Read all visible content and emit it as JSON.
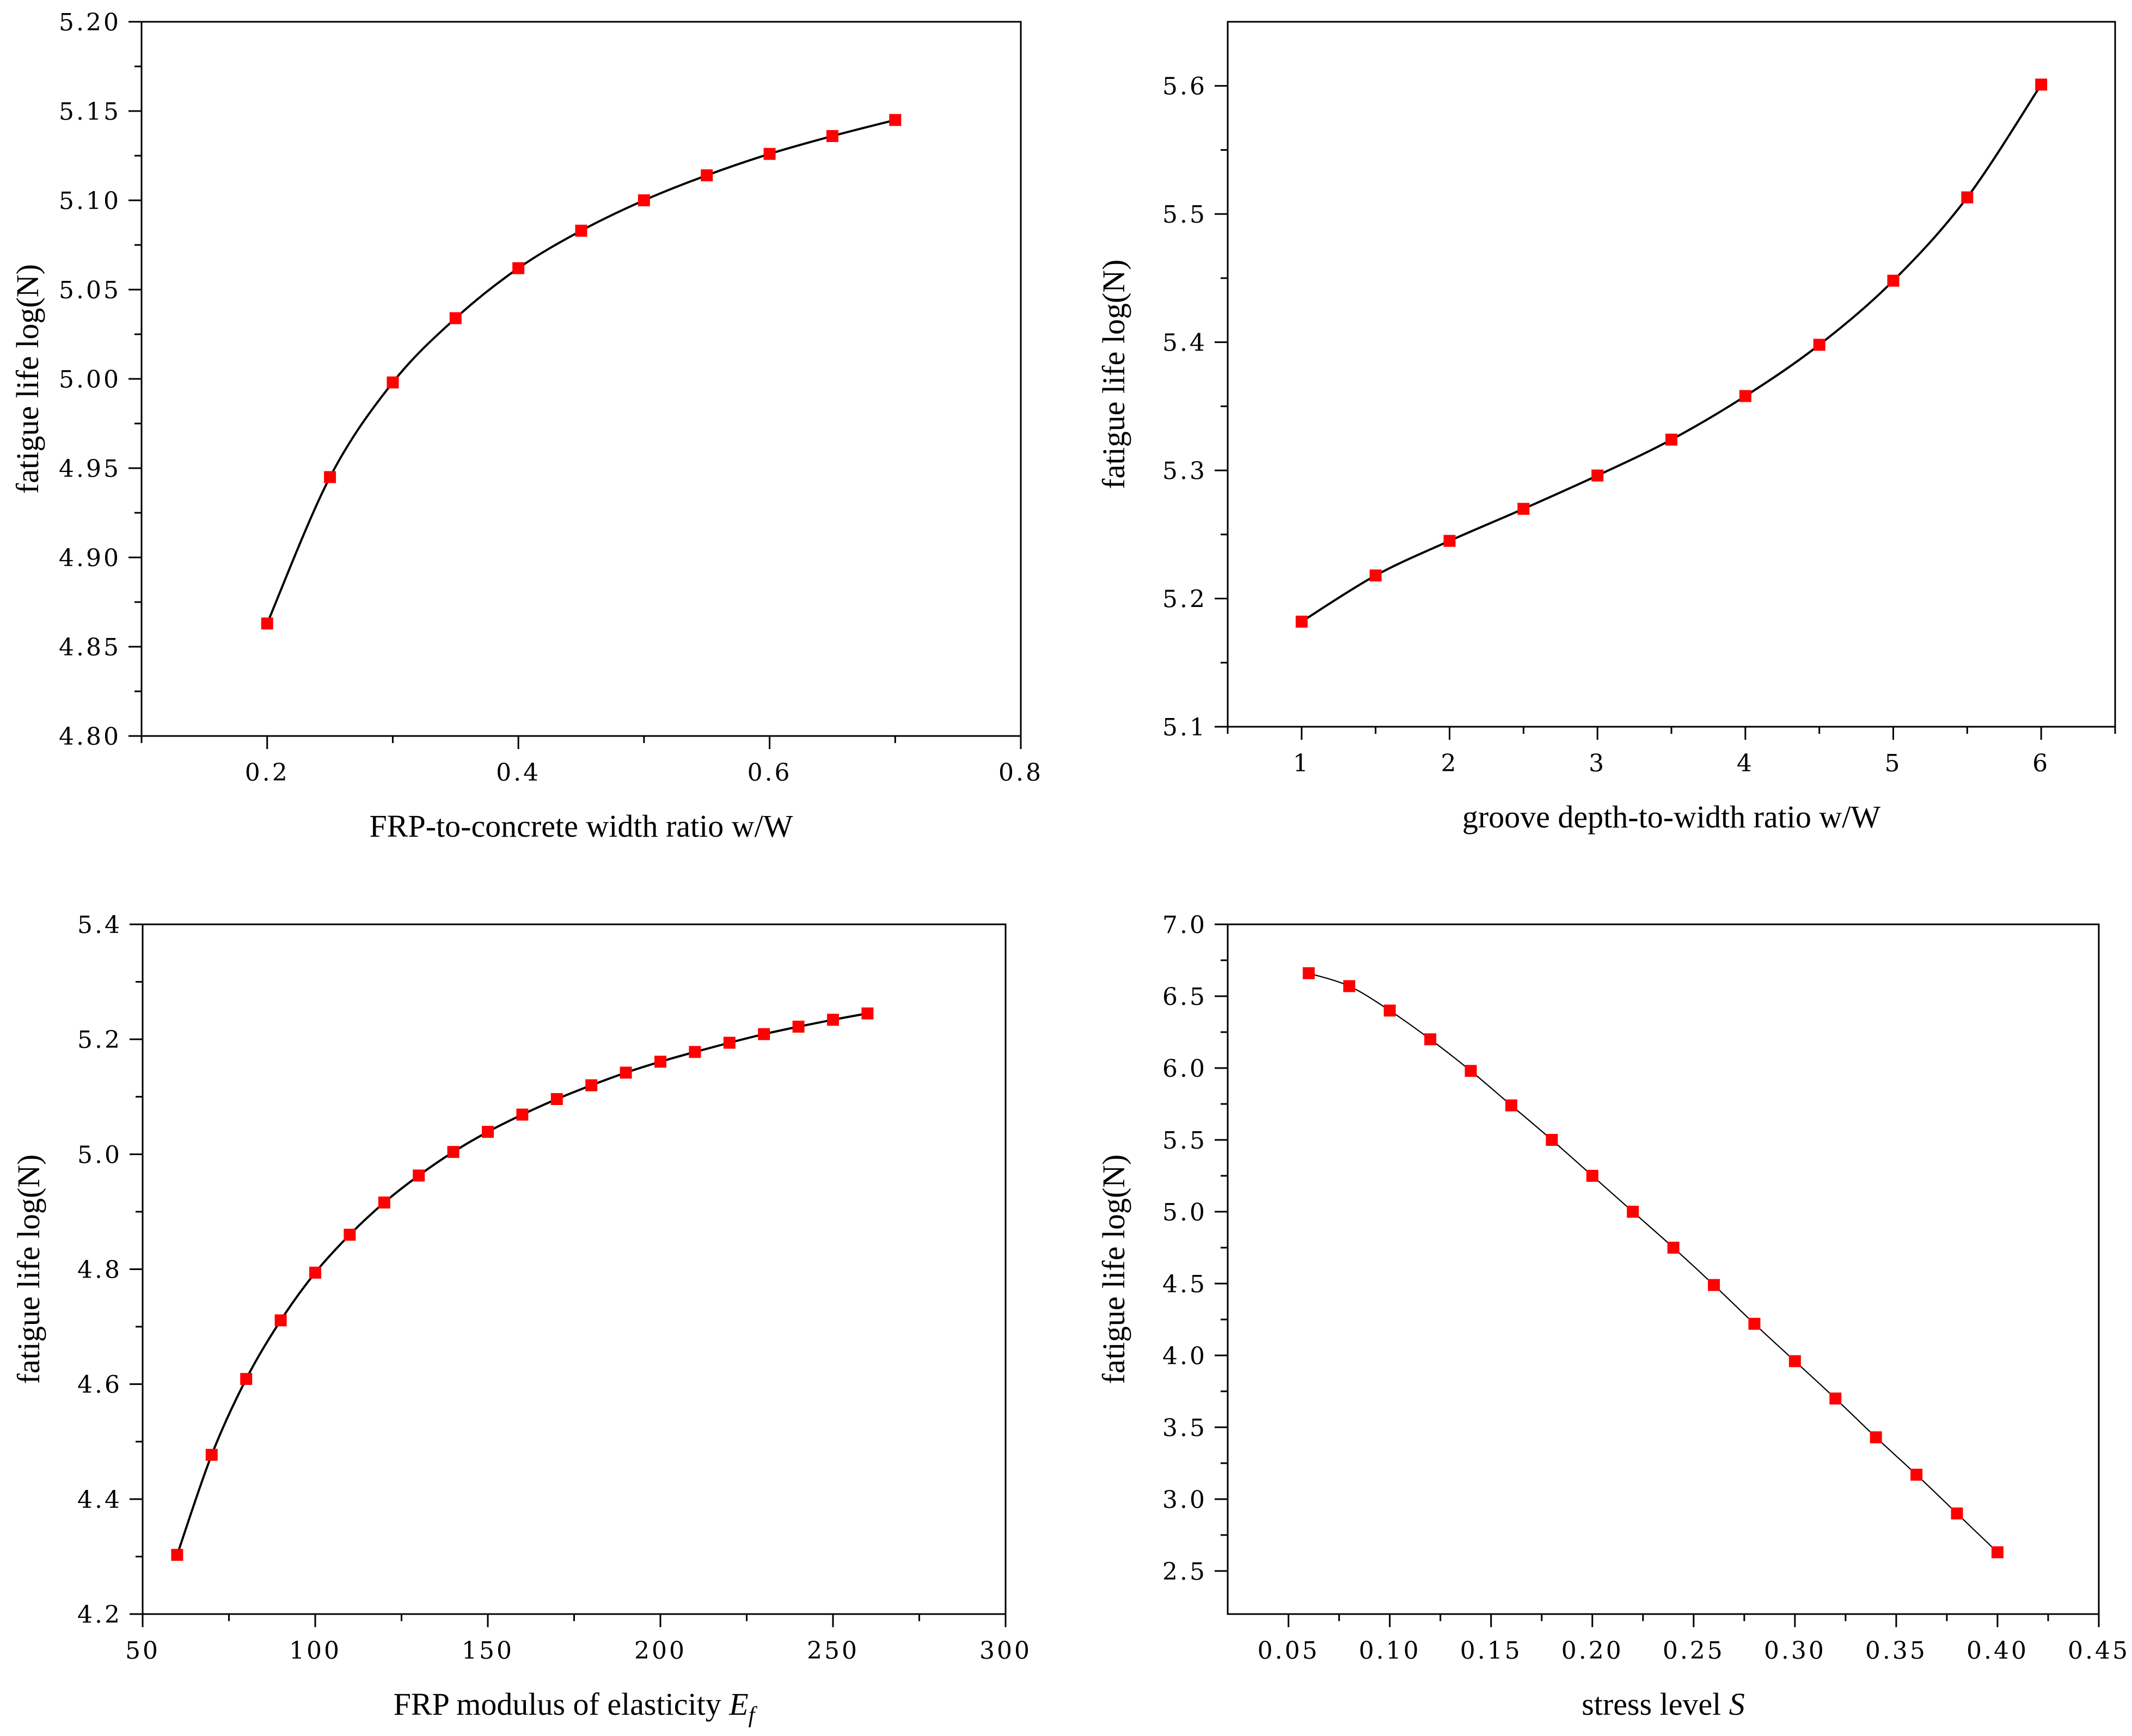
{
  "chart_data": [
    {
      "type": "line",
      "title": "",
      "xlabel": "FRP-to-concrete width ratio w/W",
      "ylabel": "fatigue life log(N)",
      "xlim": [
        0.1,
        0.8
      ],
      "ylim": [
        4.8,
        5.2
      ],
      "xticks": [
        0.2,
        0.4,
        0.6,
        0.8
      ],
      "xtick_labels": [
        "0.2",
        "0.4",
        "0.6",
        "0.8"
      ],
      "xminor": [
        0.1,
        0.3,
        0.5,
        0.7
      ],
      "yticks": [
        4.8,
        4.85,
        4.9,
        4.95,
        5.0,
        5.05,
        5.1,
        5.15,
        5.2
      ],
      "ytick_labels": [
        "4.80",
        "4.85",
        "4.90",
        "4.95",
        "5.00",
        "5.05",
        "5.10",
        "5.15",
        "5.20"
      ],
      "grid": false,
      "series": [
        {
          "name": "fatigue life",
          "x": [
            0.2,
            0.25,
            0.3,
            0.35,
            0.4,
            0.45,
            0.5,
            0.55,
            0.6,
            0.65,
            0.7
          ],
          "y": [
            4.863,
            4.945,
            4.998,
            5.034,
            5.062,
            5.083,
            5.1,
            5.114,
            5.126,
            5.136,
            5.145
          ]
        }
      ]
    },
    {
      "type": "line",
      "title": "",
      "xlabel": "groove depth-to-width ratio w/W",
      "ylabel": "fatigue life log(N)",
      "xlim": [
        0.5,
        6.5
      ],
      "ylim": [
        5.1,
        5.65
      ],
      "xticks": [
        1,
        2,
        3,
        4,
        5,
        6
      ],
      "xtick_labels": [
        "1",
        "2",
        "3",
        "4",
        "5",
        "6"
      ],
      "xminor": [
        0.5,
        1.5,
        2.5,
        3.5,
        4.5,
        5.5,
        6.5
      ],
      "yticks": [
        5.1,
        5.2,
        5.3,
        5.4,
        5.5,
        5.6
      ],
      "ytick_labels": [
        "5.1",
        "5.2",
        "5.3",
        "5.4",
        "5.5",
        "5.6"
      ],
      "grid": false,
      "series": [
        {
          "name": "fatigue life",
          "x": [
            1,
            1.5,
            2,
            2.5,
            3,
            3.5,
            4,
            4.5,
            5,
            5.5,
            6
          ],
          "y": [
            5.182,
            5.218,
            5.245,
            5.27,
            5.296,
            5.324,
            5.358,
            5.398,
            5.448,
            5.513,
            5.601
          ]
        }
      ]
    },
    {
      "type": "line",
      "title": "",
      "xlabel": "FRP modulus of elasticity",
      "xlabel_symbol": "E",
      "xlabel_subscript": "f",
      "ylabel": "fatigue life log(N)",
      "xlim": [
        50,
        300
      ],
      "ylim": [
        4.2,
        5.4
      ],
      "xticks": [
        50,
        100,
        150,
        200,
        250,
        300
      ],
      "xtick_labels": [
        "50",
        "100",
        "150",
        "200",
        "250",
        "300"
      ],
      "xminor": [
        75,
        125,
        175,
        225,
        275
      ],
      "yticks": [
        4.2,
        4.4,
        4.6,
        4.8,
        5.0,
        5.2,
        5.4
      ],
      "ytick_labels": [
        "4.2",
        "4.4",
        "4.6",
        "4.8",
        "5.0",
        "5.2",
        "5.4"
      ],
      "grid": false,
      "series": [
        {
          "name": "fatigue life",
          "x": [
            60,
            70,
            80,
            90,
            100,
            110,
            120,
            130,
            140,
            150,
            160,
            170,
            180,
            190,
            200,
            210,
            220,
            230,
            240,
            250,
            260
          ],
          "y": [
            4.303,
            4.477,
            4.609,
            4.711,
            4.794,
            4.86,
            4.916,
            4.963,
            5.004,
            5.039,
            5.069,
            5.096,
            5.12,
            5.142,
            5.161,
            5.178,
            5.194,
            5.209,
            5.222,
            5.234,
            5.245
          ]
        }
      ]
    },
    {
      "type": "line",
      "title": "",
      "xlabel": "stress level",
      "xlabel_symbol": "S",
      "ylabel": "fatigue life log(N)",
      "xlim": [
        0.02,
        0.45
      ],
      "ylim": [
        2.2,
        7.0
      ],
      "xticks": [
        0.05,
        0.1,
        0.15,
        0.2,
        0.25,
        0.3,
        0.35,
        0.4,
        0.45
      ],
      "xtick_labels": [
        "0.05",
        "0.10",
        "0.15",
        "0.20",
        "0.25",
        "0.30",
        "0.35",
        "0.40",
        "0.45"
      ],
      "xminor": [
        0.075,
        0.125,
        0.175,
        0.225,
        0.275,
        0.325,
        0.375,
        0.425
      ],
      "yticks": [
        2.5,
        3.0,
        3.5,
        4.0,
        4.5,
        5.0,
        5.5,
        6.0,
        6.5,
        7.0
      ],
      "ytick_labels": [
        "2.5",
        "3.0",
        "3.5",
        "4.0",
        "4.5",
        "5.0",
        "5.5",
        "6.0",
        "6.5",
        "7.0"
      ],
      "grid": false,
      "series": [
        {
          "name": "fatigue life",
          "x": [
            0.06,
            0.08,
            0.1,
            0.12,
            0.14,
            0.16,
            0.18,
            0.2,
            0.22,
            0.24,
            0.26,
            0.28,
            0.3,
            0.32,
            0.34,
            0.36,
            0.38,
            0.4
          ],
          "y": [
            6.66,
            6.57,
            6.4,
            6.2,
            5.98,
            5.74,
            5.5,
            5.25,
            5.0,
            4.75,
            4.49,
            4.22,
            3.96,
            3.7,
            3.43,
            3.17,
            2.9,
            2.63
          ]
        }
      ]
    }
  ],
  "style": {
    "marker_color": "#ff0000",
    "line_color": "#000000",
    "axis_color": "#000000"
  }
}
